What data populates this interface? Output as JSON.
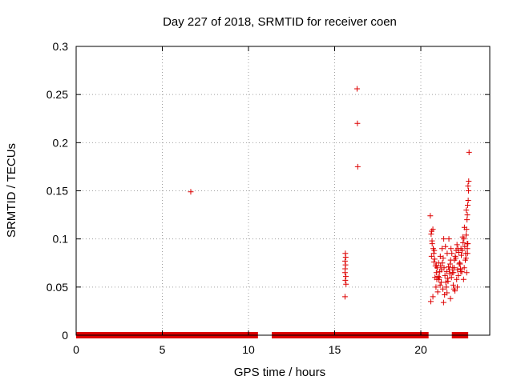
{
  "chart_data": {
    "type": "scatter",
    "title": "Day 227 of 2018, SRMTID for receiver coen",
    "xlabel": "GPS time / hours",
    "ylabel": "SRMTID / TECUs",
    "xlim": [
      0,
      24
    ],
    "ylim": [
      0,
      0.3
    ],
    "xticks": [
      0,
      5,
      10,
      15,
      20
    ],
    "xtick_labels": [
      "0",
      "5",
      "10",
      "15",
      "20"
    ],
    "yticks": [
      0,
      0.05,
      0.1,
      0.15,
      0.2,
      0.25,
      0.3
    ],
    "ytick_labels": [
      "0",
      "0.05",
      "0.1",
      "0.15",
      "0.2",
      "0.25",
      "0.3"
    ],
    "grid": true,
    "marker": "+",
    "color": "#dd0000",
    "zero_segments": [
      [
        0.0,
        10.55
      ],
      [
        11.35,
        20.45
      ],
      [
        21.8,
        22.75
      ]
    ],
    "series": [
      {
        "name": "SRMTID",
        "x": [
          6.65,
          15.6,
          15.62,
          15.64,
          15.6,
          15.63,
          15.61,
          15.65,
          15.62,
          15.66,
          15.6,
          16.3,
          16.32,
          16.34,
          20.55,
          20.6,
          20.63,
          20.66,
          20.7,
          20.72,
          20.75,
          20.8,
          20.85,
          20.9,
          20.95,
          21.0,
          21.05,
          21.1,
          21.15,
          21.2,
          21.25,
          21.3,
          21.35,
          21.4,
          21.45,
          21.5,
          21.55,
          21.6,
          21.65,
          21.7,
          21.75,
          21.8,
          21.85,
          21.9,
          21.95,
          22.0,
          22.05,
          22.1,
          22.15,
          22.2,
          22.25,
          22.3,
          22.35,
          22.4,
          22.45,
          22.5,
          22.55,
          22.6,
          22.62,
          22.65,
          22.68,
          22.7,
          22.72,
          22.75,
          22.78,
          22.8,
          20.65,
          20.78,
          20.88,
          20.98,
          21.08,
          21.18,
          21.28,
          21.38,
          21.48,
          21.58,
          21.68,
          21.78,
          21.88,
          21.98,
          22.08,
          22.18,
          22.28,
          22.38,
          22.48,
          22.58,
          22.7,
          20.58,
          20.7,
          20.82,
          20.93,
          21.03,
          21.13,
          21.23,
          21.33,
          21.43,
          21.53,
          21.63,
          21.73,
          21.83,
          21.93,
          22.03,
          22.13,
          22.23,
          22.33,
          22.43,
          22.53,
          22.63,
          22.73,
          20.62,
          20.76,
          20.9,
          21.12,
          21.32,
          21.52,
          21.72,
          21.92,
          22.12,
          22.32,
          22.52,
          22.66,
          22.74,
          22.64,
          22.69,
          22.71,
          22.77
        ],
        "y": [
          0.149,
          0.065,
          0.085,
          0.081,
          0.077,
          0.073,
          0.069,
          0.061,
          0.057,
          0.053,
          0.04,
          0.256,
          0.22,
          0.175,
          0.124,
          0.105,
          0.108,
          0.095,
          0.11,
          0.09,
          0.085,
          0.079,
          0.072,
          0.065,
          0.07,
          0.061,
          0.058,
          0.066,
          0.072,
          0.068,
          0.075,
          0.08,
          0.07,
          0.062,
          0.055,
          0.066,
          0.059,
          0.071,
          0.068,
          0.074,
          0.09,
          0.085,
          0.07,
          0.065,
          0.078,
          0.082,
          0.088,
          0.094,
          0.09,
          0.086,
          0.075,
          0.069,
          0.083,
          0.088,
          0.096,
          0.1,
          0.092,
          0.085,
          0.08,
          0.11,
          0.12,
          0.125,
          0.135,
          0.14,
          0.16,
          0.19,
          0.098,
          0.088,
          0.05,
          0.045,
          0.06,
          0.055,
          0.048,
          0.042,
          0.05,
          0.056,
          0.064,
          0.06,
          0.052,
          0.046,
          0.058,
          0.062,
          0.074,
          0.066,
          0.058,
          0.078,
          0.09,
          0.035,
          0.04,
          0.06,
          0.058,
          0.075,
          0.082,
          0.09,
          0.1,
          0.092,
          0.085,
          0.1,
          0.078,
          0.065,
          0.07,
          0.08,
          0.068,
          0.074,
          0.09,
          0.102,
          0.112,
          0.104,
          0.095,
          0.082,
          0.076,
          0.072,
          0.052,
          0.034,
          0.044,
          0.038,
          0.048,
          0.05,
          0.066,
          0.07,
          0.065,
          0.155,
          0.13,
          0.095,
          0.085,
          0.15
        ]
      }
    ]
  }
}
